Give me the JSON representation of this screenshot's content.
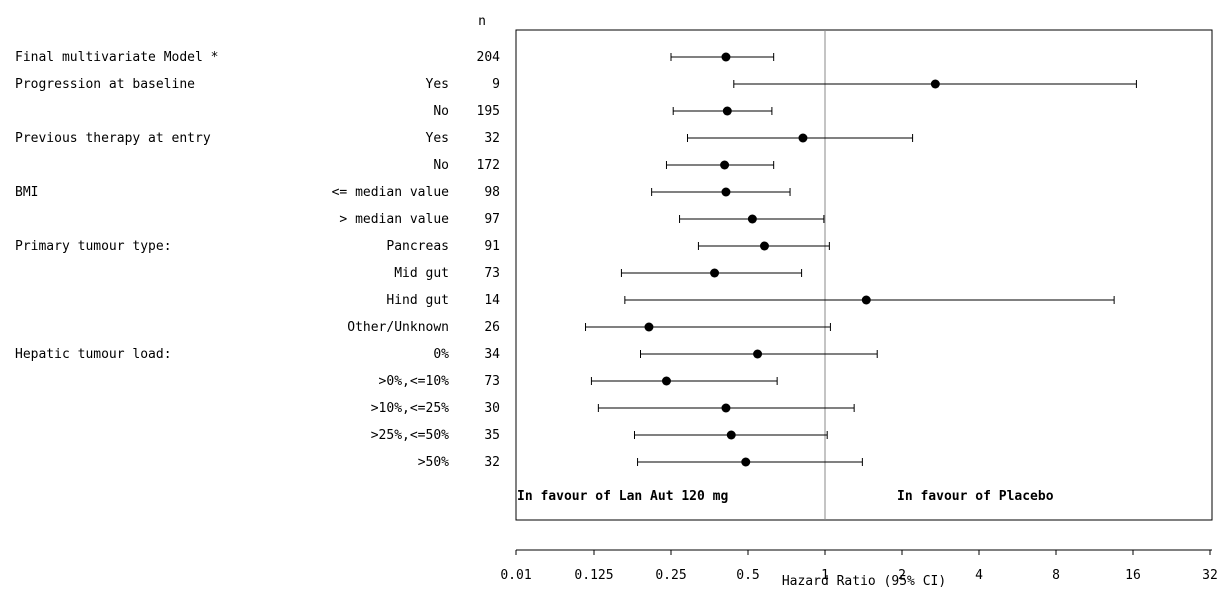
{
  "chart_data": {
    "type": "forest",
    "n_header": "n",
    "xlabel": "Hazard Ratio (95% CI)",
    "x_scale": "log2",
    "xlim": [
      0.01,
      32
    ],
    "x_ticks": [
      0.01,
      0.125,
      0.25,
      0.5,
      1,
      2,
      4,
      8,
      16,
      32
    ],
    "x_tick_labels": [
      "0.01",
      "0.125",
      "0.25",
      "0.5",
      "1",
      "2",
      "4",
      "8",
      "16",
      "32"
    ],
    "reference_line": 1,
    "favour_left": "In favour of Lan Aut 120 mg",
    "favour_right": "In favour of Placebo",
    "rows": [
      {
        "group": "Final multivariate Model *",
        "sub": "",
        "n": "204",
        "hr": 0.41,
        "lo": 0.25,
        "hi": 0.63
      },
      {
        "group": "Progression at baseline",
        "sub": "Yes",
        "n": "9",
        "hr": 2.7,
        "lo": 0.44,
        "hi": 16.5
      },
      {
        "group": "",
        "sub": "No",
        "n": "195",
        "hr": 0.415,
        "lo": 0.255,
        "hi": 0.62
      },
      {
        "group": "Previous therapy at entry",
        "sub": "Yes",
        "n": "32",
        "hr": 0.82,
        "lo": 0.29,
        "hi": 2.2
      },
      {
        "group": "",
        "sub": "No",
        "n": "172",
        "hr": 0.405,
        "lo": 0.24,
        "hi": 0.63
      },
      {
        "group": "BMI",
        "sub": "<= median value",
        "n": "98",
        "hr": 0.41,
        "lo": 0.21,
        "hi": 0.73
      },
      {
        "group": "",
        "sub": "> median value",
        "n": "97",
        "hr": 0.52,
        "lo": 0.27,
        "hi": 0.99
      },
      {
        "group": "Primary tumour type:",
        "sub": "Pancreas",
        "n": "91",
        "hr": 0.58,
        "lo": 0.32,
        "hi": 1.04
      },
      {
        "group": "",
        "sub": "Mid gut",
        "n": "73",
        "hr": 0.37,
        "lo": 0.16,
        "hi": 0.81
      },
      {
        "group": "",
        "sub": "Hind gut",
        "n": "14",
        "hr": 1.45,
        "lo": 0.165,
        "hi": 13.5
      },
      {
        "group": "",
        "sub": "Other/Unknown",
        "n": "26",
        "hr": 0.205,
        "lo": 0.095,
        "hi": 1.05
      },
      {
        "group": "Hepatic tumour load:",
        "sub": "0%",
        "n": "34",
        "hr": 0.545,
        "lo": 0.19,
        "hi": 1.6
      },
      {
        "group": "",
        "sub": ">0%,<=10%",
        "n": "73",
        "hr": 0.24,
        "lo": 0.115,
        "hi": 0.65
      },
      {
        "group": "",
        "sub": ">10%,<=25%",
        "n": "30",
        "hr": 0.41,
        "lo": 0.13,
        "hi": 1.3
      },
      {
        "group": "",
        "sub": ">25%,<=50%",
        "n": "35",
        "hr": 0.43,
        "lo": 0.18,
        "hi": 1.02
      },
      {
        "group": "",
        "sub": ">50%",
        "n": "32",
        "hr": 0.49,
        "lo": 0.185,
        "hi": 1.4
      }
    ]
  }
}
